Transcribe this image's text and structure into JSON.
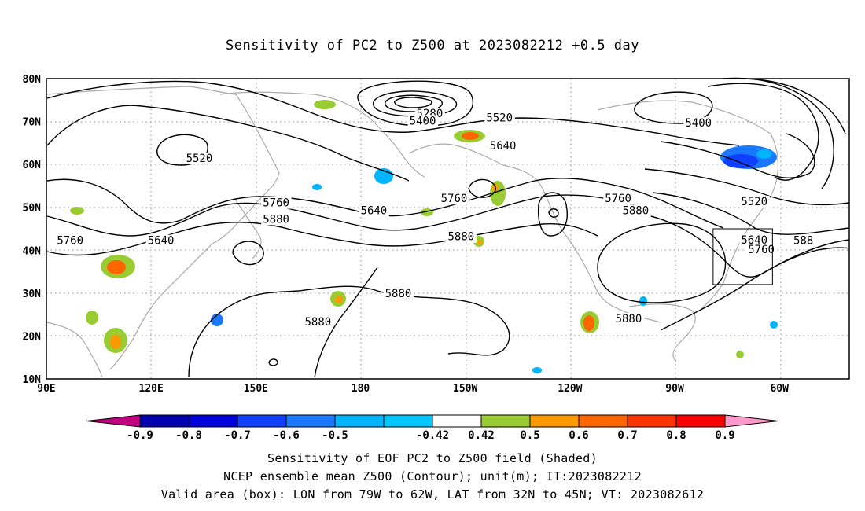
{
  "title": "Sensitivity of PC2 to Z500 at 2023082212 +0.5 day",
  "map": {
    "lon_labels": [
      "90E",
      "120E",
      "150E",
      "180",
      "150W",
      "120W",
      "90W",
      "60W"
    ],
    "lat_labels": [
      "80N",
      "70N",
      "60N",
      "50N",
      "40N",
      "30N",
      "20N",
      "10N"
    ],
    "contour_labels": [
      {
        "text": "5280",
        "lon": 196,
        "lat": 71
      },
      {
        "text": "5400",
        "lon": 194,
        "lat": 69.3
      },
      {
        "text": "5520",
        "lon": 216,
        "lat": 70
      },
      {
        "text": "5640",
        "lon": 217,
        "lat": 63.5
      },
      {
        "text": "5400",
        "lon": 273,
        "lat": 68.8
      },
      {
        "text": "5520",
        "lon": 289,
        "lat": 50.5
      },
      {
        "text": "5640",
        "lon": 289,
        "lat": 41.5
      },
      {
        "text": "5760",
        "lon": 291,
        "lat": 39.3
      },
      {
        "text": "588",
        "lon": 304,
        "lat": 41.4
      },
      {
        "text": "5520",
        "lon": 130,
        "lat": 60.6
      },
      {
        "text": "5760",
        "lon": 93,
        "lat": 41.4
      },
      {
        "text": "5640",
        "lon": 119,
        "lat": 41.4
      },
      {
        "text": "5760",
        "lon": 152,
        "lat": 50.2
      },
      {
        "text": "5880",
        "lon": 152,
        "lat": 46.4
      },
      {
        "text": "5640",
        "lon": 180,
        "lat": 48.4
      },
      {
        "text": "5760",
        "lon": 203,
        "lat": 51.2
      },
      {
        "text": "5880",
        "lon": 205,
        "lat": 42.3
      },
      {
        "text": "5760",
        "lon": 250,
        "lat": 51.2
      },
      {
        "text": "5880",
        "lon": 255,
        "lat": 48.4
      },
      {
        "text": "5880",
        "lon": 187,
        "lat": 29.1
      },
      {
        "text": "5880",
        "lon": 164,
        "lat": 22.5
      },
      {
        "text": "5880",
        "lon": 253,
        "lat": 23.2
      }
    ],
    "valid_box": {
      "lon_min": -79,
      "lon_max": -62,
      "lat_min": 32,
      "lat_max": 45
    }
  },
  "colorbar": {
    "levels": [
      "-0.9",
      "-0.8",
      "-0.7",
      "-0.6",
      "-0.5",
      "-0.42",
      "0.42",
      "0.5",
      "0.6",
      "0.7",
      "0.8",
      "0.9"
    ],
    "colors": [
      "#c00080",
      "#0000b0",
      "#0000dd",
      "#1040ff",
      "#1a78ff",
      "#00b4ff",
      "#00c8ff",
      "#ffffff",
      "#99cc33",
      "#ff9900",
      "#ff6600",
      "#ff3300",
      "#ff0000",
      "#ff99cc"
    ]
  },
  "captions": {
    "line1": "Sensitivity of EOF PC2 to Z500 field (Shaded)",
    "line2": "NCEP ensemble mean Z500 (Contour); unit(m); IT:2023082212",
    "line3": "Valid area (box): LON from 79W to 62W, LAT from 32N to 45N; VT: 2023082612"
  }
}
